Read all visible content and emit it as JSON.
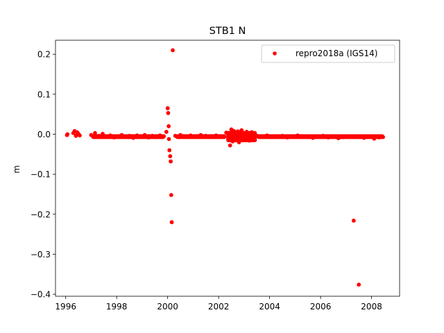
{
  "chart_data": {
    "type": "scatter",
    "title": "STB1 N",
    "xlabel": "",
    "ylabel": "m",
    "xlim": [
      1995.6,
      2009.1
    ],
    "ylim": [
      -0.405,
      0.235
    ],
    "xticks": [
      {
        "value": 1996,
        "label": "1996"
      },
      {
        "value": 1998,
        "label": "1998"
      },
      {
        "value": 2000,
        "label": "2000"
      },
      {
        "value": 2002,
        "label": "2002"
      },
      {
        "value": 2004,
        "label": "2004"
      },
      {
        "value": 2006,
        "label": "2006"
      },
      {
        "value": 2008,
        "label": "2008"
      }
    ],
    "yticks": [
      {
        "value": 0.2,
        "label": "0.2"
      },
      {
        "value": 0.1,
        "label": "0.1"
      },
      {
        "value": 0.0,
        "label": "0.0"
      },
      {
        "value": -0.1,
        "label": "−0.1"
      },
      {
        "value": -0.2,
        "label": "−0.2"
      },
      {
        "value": -0.3,
        "label": "−0.3"
      },
      {
        "value": -0.4,
        "label": "−0.4"
      }
    ],
    "grid": false,
    "legend": {
      "placement": "top-right"
    },
    "series": [
      {
        "name": "repro2018a (IGS14)",
        "color": "#ff0000",
        "marker": "circle",
        "x": [
          1996.05,
          1996.07,
          1996.3,
          1996.35,
          1996.4,
          1996.45,
          1996.5,
          1996.55,
          1997.0,
          1997.15,
          1997.3,
          1997.45,
          1997.6,
          1997.75,
          1997.9,
          1998.05,
          1998.2,
          1998.35,
          1998.5,
          1998.65,
          1998.8,
          1998.95,
          1999.1,
          1999.25,
          1999.4,
          1999.55,
          1999.7,
          1999.85,
          1999.95,
          2000.0,
          2000.02,
          2000.04,
          2000.05,
          2000.07,
          2000.1,
          2000.12,
          2000.14,
          2000.16,
          2000.2,
          2000.3,
          2000.5,
          2000.7,
          2000.9,
          2001.1,
          2001.3,
          2001.5,
          2001.7,
          2001.9,
          2002.1,
          2002.3,
          2002.45,
          2002.5,
          2002.55,
          2002.6,
          2002.7,
          2002.75,
          2002.8,
          2002.9,
          2003.0,
          2003.1,
          2003.2,
          2003.3,
          2003.4,
          2003.5,
          2003.7,
          2003.9,
          2004.1,
          2004.3,
          2004.5,
          2004.7,
          2004.9,
          2005.1,
          2005.3,
          2005.5,
          2005.7,
          2005.9,
          2006.1,
          2006.3,
          2006.5,
          2006.7,
          2006.9,
          2007.1,
          2007.3,
          2007.5,
          2007.7,
          2007.9,
          2008.1,
          2008.3,
          2008.45
        ],
        "y": [
          -0.002,
          0.0,
          0.003,
          0.008,
          -0.004,
          0.005,
          0.001,
          -0.003,
          -0.002,
          0.003,
          -0.004,
          0.001,
          -0.006,
          -0.003,
          -0.008,
          -0.005,
          -0.002,
          -0.007,
          -0.004,
          -0.009,
          -0.003,
          -0.006,
          -0.002,
          -0.008,
          -0.004,
          -0.007,
          -0.003,
          -0.005,
          0.006,
          0.065,
          0.053,
          0.02,
          -0.012,
          -0.04,
          -0.055,
          -0.068,
          -0.152,
          -0.22,
          0.21,
          -0.004,
          -0.002,
          -0.005,
          -0.003,
          -0.006,
          -0.002,
          -0.004,
          -0.007,
          -0.003,
          -0.005,
          0.004,
          -0.028,
          0.012,
          -0.018,
          0.008,
          -0.015,
          0.007,
          -0.02,
          0.01,
          -0.012,
          0.006,
          -0.016,
          0.005,
          -0.009,
          -0.004,
          -0.006,
          -0.003,
          -0.007,
          -0.005,
          -0.004,
          -0.008,
          -0.006,
          -0.003,
          -0.007,
          -0.005,
          -0.009,
          -0.006,
          -0.004,
          -0.008,
          -0.006,
          -0.01,
          -0.007,
          -0.005,
          -0.216,
          -0.376,
          -0.009,
          -0.006,
          -0.011,
          -0.008,
          -0.007
        ]
      }
    ]
  }
}
